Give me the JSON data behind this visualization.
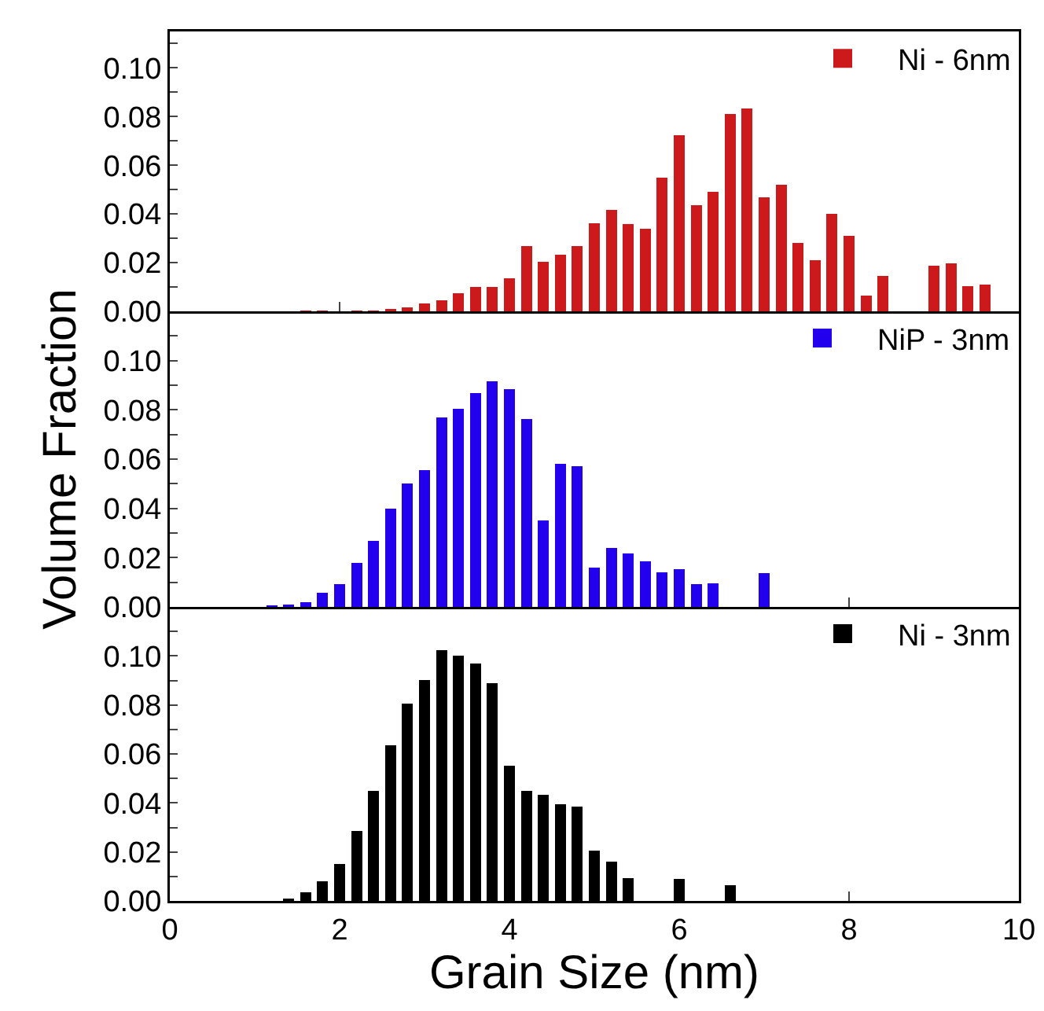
{
  "chart_data": [
    {
      "type": "bar",
      "x": [
        1.6,
        1.8,
        2.2,
        2.4,
        2.6,
        2.8,
        3.0,
        3.2,
        3.4,
        3.6,
        3.8,
        4.0,
        4.2,
        4.4,
        4.6,
        4.8,
        5.0,
        5.2,
        5.4,
        5.6,
        5.8,
        6.0,
        6.2,
        6.4,
        6.6,
        6.8,
        7.0,
        7.2,
        7.4,
        7.6,
        7.8,
        8.0,
        8.2,
        8.4,
        9.0,
        9.2,
        9.4,
        9.6
      ],
      "series": [
        {
          "name": "Ni - 6nm",
          "color": "#cc1a1c",
          "values": [
            0.0003,
            0.0003,
            0.0003,
            0.0003,
            0.001,
            0.0016,
            0.0032,
            0.0046,
            0.0074,
            0.0101,
            0.0101,
            0.0136,
            0.0267,
            0.0205,
            0.0234,
            0.0267,
            0.0363,
            0.0418,
            0.036,
            0.034,
            0.055,
            0.0724,
            0.0437,
            0.049,
            0.081,
            0.0834,
            0.047,
            0.052,
            0.028,
            0.021,
            0.04,
            0.031,
            0.0064,
            0.0145,
            0.0186,
            0.0198,
            0.0103,
            0.011
          ]
        }
      ],
      "xlim": [
        0,
        10
      ],
      "xticks": [
        0,
        2,
        4,
        6,
        8,
        10
      ],
      "ylim": [
        0,
        0.115
      ],
      "yticks": [
        {
          "value": 0,
          "label": "0.00"
        },
        {
          "value": 0.01,
          "label": null
        },
        {
          "value": 0.02,
          "label": "0.02"
        },
        {
          "value": 0.03,
          "label": null
        },
        {
          "value": 0.04,
          "label": "0.04"
        },
        {
          "value": 0.05,
          "label": null
        },
        {
          "value": 0.06,
          "label": "0.06"
        },
        {
          "value": 0.07,
          "label": null
        },
        {
          "value": 0.08,
          "label": "0.08"
        },
        {
          "value": 0.09,
          "label": null
        },
        {
          "value": 0.1,
          "label": "0.10"
        },
        {
          "value": 0.11,
          "label": null
        }
      ],
      "tick_labels": "y",
      "grid": false,
      "legend": "top right"
    },
    {
      "type": "bar",
      "x": [
        1.2,
        1.4,
        1.6,
        1.8,
        2.0,
        2.2,
        2.4,
        2.6,
        2.8,
        3.0,
        3.2,
        3.4,
        3.6,
        3.8,
        4.0,
        4.2,
        4.4,
        4.6,
        4.8,
        5.0,
        5.2,
        5.4,
        5.6,
        5.8,
        6.0,
        6.2,
        6.4,
        7.0
      ],
      "series": [
        {
          "name": "NiP - 3nm",
          "color": "#2200ee",
          "values": [
            0.0005,
            0.001,
            0.002,
            0.0057,
            0.0092,
            0.018,
            0.0267,
            0.04,
            0.05,
            0.0556,
            0.077,
            0.0805,
            0.0867,
            0.0917,
            0.0883,
            0.0763,
            0.035,
            0.058,
            0.0572,
            0.016,
            0.0239,
            0.0218,
            0.0186,
            0.014,
            0.0154,
            0.0092,
            0.0097,
            0.0138
          ]
        }
      ],
      "ylabel": "Volume Fraction",
      "xlim": [
        0,
        10
      ],
      "xticks": [
        0,
        2,
        4,
        6,
        8,
        10
      ],
      "ylim": [
        0,
        0.12
      ],
      "yticks": [
        {
          "value": 0,
          "label": "0.00"
        },
        {
          "value": 0.01,
          "label": null
        },
        {
          "value": 0.02,
          "label": "0.02"
        },
        {
          "value": 0.03,
          "label": null
        },
        {
          "value": 0.04,
          "label": "0.04"
        },
        {
          "value": 0.05,
          "label": null
        },
        {
          "value": 0.06,
          "label": "0.06"
        },
        {
          "value": 0.07,
          "label": null
        },
        {
          "value": 0.08,
          "label": "0.08"
        },
        {
          "value": 0.09,
          "label": null
        },
        {
          "value": 0.1,
          "label": "0.10"
        },
        {
          "value": 0.11,
          "label": null
        }
      ],
      "tick_labels": "y",
      "grid": false,
      "legend": "top right"
    },
    {
      "type": "bar",
      "x": [
        1.4,
        1.6,
        1.8,
        2.0,
        2.2,
        2.4,
        2.6,
        2.8,
        3.0,
        3.2,
        3.4,
        3.6,
        3.8,
        4.0,
        4.2,
        4.4,
        4.6,
        4.8,
        5.0,
        5.2,
        5.4,
        6.0,
        6.6
      ],
      "series": [
        {
          "name": "Ni - 3nm",
          "color": "#000000",
          "values": [
            0.001,
            0.0034,
            0.008,
            0.015,
            0.0284,
            0.0449,
            0.0634,
            0.0805,
            0.0902,
            0.1023,
            0.1,
            0.097,
            0.089,
            0.0551,
            0.0449,
            0.0432,
            0.0396,
            0.0384,
            0.0204,
            0.016,
            0.0092,
            0.0089,
            0.0064
          ]
        }
      ],
      "xlabel": "Grain Size (nm)",
      "xlim": [
        0,
        10
      ],
      "xticks": [
        0,
        2,
        4,
        6,
        8,
        10
      ],
      "ylim": [
        0,
        0.12
      ],
      "yticks": [
        {
          "value": 0,
          "label": "0.00"
        },
        {
          "value": 0.01,
          "label": null
        },
        {
          "value": 0.02,
          "label": "0.02"
        },
        {
          "value": 0.03,
          "label": null
        },
        {
          "value": 0.04,
          "label": "0.04"
        },
        {
          "value": 0.05,
          "label": null
        },
        {
          "value": 0.06,
          "label": "0.06"
        },
        {
          "value": 0.07,
          "label": null
        },
        {
          "value": 0.08,
          "label": "0.08"
        },
        {
          "value": 0.09,
          "label": null
        },
        {
          "value": 0.1,
          "label": "0.10"
        },
        {
          "value": 0.11,
          "label": null
        }
      ],
      "grid": false,
      "legend": "top right"
    }
  ]
}
